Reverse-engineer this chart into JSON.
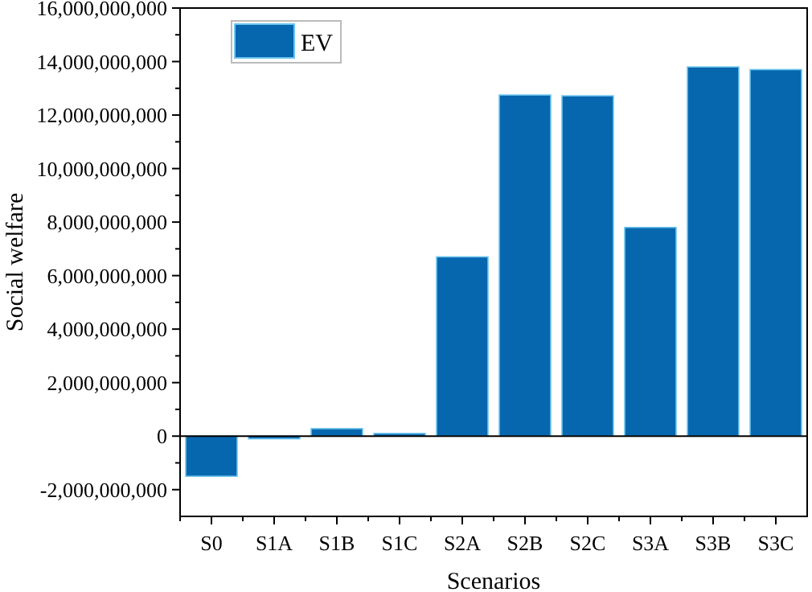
{
  "chart_data": {
    "type": "bar",
    "xlabel": "Scenarios",
    "ylabel": "Social welfare",
    "categories": [
      "S0",
      "S1A",
      "S1B",
      "S1C",
      "S2A",
      "S2B",
      "S2C",
      "S3A",
      "S3B",
      "S3C"
    ],
    "series": [
      {
        "name": "EV",
        "color": "#0767ae",
        "values": [
          -1500000000,
          -100000000,
          280000000,
          100000000,
          6700000000,
          12750000000,
          12720000000,
          7800000000,
          13800000000,
          13700000000
        ]
      }
    ],
    "ylim": [
      -3000000000,
      16000000000
    ],
    "yticks": [
      {
        "value": -2000000000,
        "label": "-2,000,000,000"
      },
      {
        "value": 0,
        "label": "0"
      },
      {
        "value": 2000000000,
        "label": "2,000,000,000"
      },
      {
        "value": 4000000000,
        "label": "4,000,000,000"
      },
      {
        "value": 6000000000,
        "label": "6,000,000,000"
      },
      {
        "value": 8000000000,
        "label": "8,000,000,000"
      },
      {
        "value": 10000000000,
        "label": "10,000,000,000"
      },
      {
        "value": 12000000000,
        "label": "12,000,000,000"
      },
      {
        "value": 14000000000,
        "label": "14,000,000,000"
      },
      {
        "value": 16000000000,
        "label": "16,000,000,000"
      }
    ],
    "legend": "top left"
  }
}
